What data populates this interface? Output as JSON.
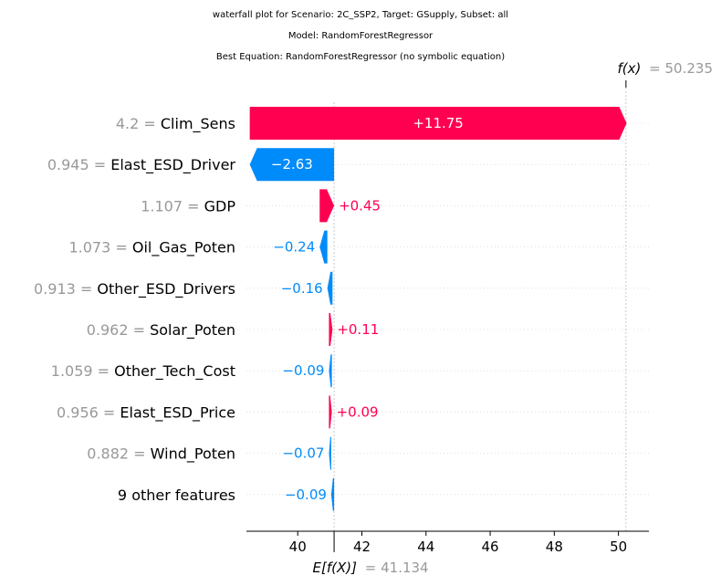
{
  "chart_data": {
    "type": "waterfall",
    "title_lines": [
      "waterfall plot for Scenario: 2C_SSP2, Target: GSupply, Subset: all",
      "Model: RandomForestRegressor",
      "Best Equation: RandomForestRegressor (no symbolic equation)"
    ],
    "base_value": 41.134,
    "base_label": "E[f(X)]",
    "base_value_text": "= 41.134",
    "output_value": 50.235,
    "output_label": "f(x)",
    "output_value_text": "= 50.235",
    "xlim": [
      38.4,
      50.95
    ],
    "x_ticks": [
      40,
      42,
      44,
      46,
      48,
      50
    ],
    "features": [
      {
        "value_text": "4.2",
        "name": "Clim_Sens",
        "contribution": 11.75,
        "label": "+11.75"
      },
      {
        "value_text": "0.945",
        "name": "Elast_ESD_Driver",
        "contribution": -2.63,
        "label": "−2.63"
      },
      {
        "value_text": "1.107",
        "name": "GDP",
        "contribution": 0.45,
        "label": "+0.45"
      },
      {
        "value_text": "1.073",
        "name": "Oil_Gas_Poten",
        "contribution": -0.24,
        "label": "−0.24"
      },
      {
        "value_text": "0.913",
        "name": "Other_ESD_Drivers",
        "contribution": -0.16,
        "label": "−0.16"
      },
      {
        "value_text": "0.962",
        "name": "Solar_Poten",
        "contribution": 0.11,
        "label": "+0.11"
      },
      {
        "value_text": "1.059",
        "name": "Other_Tech_Cost",
        "contribution": -0.09,
        "label": "−0.09"
      },
      {
        "value_text": "0.956",
        "name": "Elast_ESD_Price",
        "contribution": 0.09,
        "label": "+0.09"
      },
      {
        "value_text": "0.882",
        "name": "Wind_Poten",
        "contribution": -0.07,
        "label": "−0.07"
      },
      {
        "value_text": "",
        "name": "9 other features",
        "contribution": -0.09,
        "label": "−0.09"
      }
    ],
    "colors": {
      "positive": "#ff0051",
      "negative": "#008bfb",
      "muted": "#999999",
      "grid": "#cccccc"
    }
  }
}
